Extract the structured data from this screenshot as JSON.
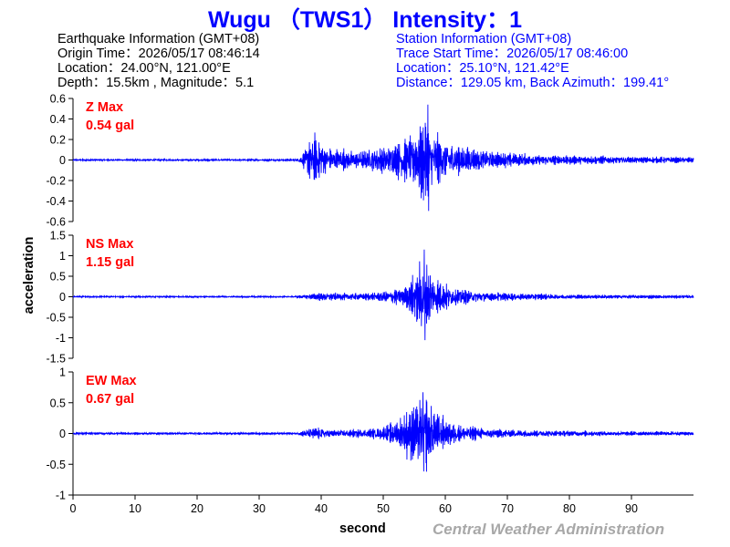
{
  "header": {
    "title": "Wugu （TWS1） Intensity：1"
  },
  "earthquake_info": {
    "heading": "Earthquake Information  (GMT+08)",
    "origin_time": "Origin Time：2026/05/17 08:46:14",
    "location": "Location：24.00°N, 121.00°E",
    "depth_magnitude": "Depth：15.5km , Magnitude：5.1"
  },
  "station_info": {
    "heading": "Station Information  (GMT+08)",
    "trace_start": "Trace Start Time：2026/05/17 08:46:00",
    "location": "Location：25.10°N, 121.42°E",
    "distance": "Distance：129.05 km, Back Azimuth：199.41°"
  },
  "footer": {
    "credit": "Central Weather Administration"
  },
  "colors": {
    "trace": "#0000ff",
    "title": "#0000ff",
    "max_label": "#ff0000",
    "axis": "#000000",
    "credit": "#a8a8a8"
  },
  "chart_data": {
    "type": "line",
    "xlabel": "second",
    "ylabel": "acceleration",
    "xlim": [
      0,
      100
    ],
    "xticks": [
      0,
      10,
      20,
      30,
      40,
      50,
      60,
      70,
      80,
      90
    ],
    "grid": false,
    "panels": [
      {
        "name": "Z",
        "max_label": "Z Max",
        "max_value": "0.54 gal",
        "ylim": [
          -0.6,
          0.6
        ],
        "yticks": [
          0.6,
          0.4,
          0.2,
          0,
          -0.2,
          -0.4,
          -0.6
        ],
        "envelope": {
          "t": [
            0,
            36,
            37,
            38,
            39,
            40,
            41,
            43,
            45,
            48,
            51,
            53,
            55,
            56,
            57,
            58,
            60,
            62,
            65,
            68,
            72,
            80,
            90,
            100
          ],
          "amp": [
            0.01,
            0.01,
            0.06,
            0.2,
            0.28,
            0.2,
            0.14,
            0.12,
            0.1,
            0.12,
            0.14,
            0.22,
            0.26,
            0.45,
            0.4,
            0.3,
            0.22,
            0.15,
            0.12,
            0.09,
            0.07,
            0.05,
            0.035,
            0.03
          ]
        },
        "peak": {
          "t": 57.2,
          "value": 0.54
        }
      },
      {
        "name": "NS",
        "max_label": "NS Max",
        "max_value": "1.15 gal",
        "ylim": [
          -1.5,
          1.5
        ],
        "yticks": [
          1.5,
          1,
          0.5,
          0,
          -0.5,
          -1,
          -1.5
        ],
        "envelope": {
          "t": [
            0,
            36,
            38,
            40,
            44,
            48,
            52,
            54,
            55,
            56,
            57,
            58,
            60,
            62,
            65,
            70,
            80,
            90,
            100
          ],
          "amp": [
            0.02,
            0.02,
            0.08,
            0.12,
            0.09,
            0.1,
            0.2,
            0.3,
            0.6,
            1.0,
            0.8,
            0.5,
            0.35,
            0.22,
            0.15,
            0.1,
            0.06,
            0.05,
            0.04
          ]
        },
        "peak": {
          "t": 56.6,
          "value": 1.15
        }
      },
      {
        "name": "EW",
        "max_label": "EW Max",
        "max_value": "0.67 gal",
        "ylim": [
          -1,
          1
        ],
        "yticks": [
          1,
          0.5,
          0,
          -0.5,
          -1
        ],
        "envelope": {
          "t": [
            0,
            36,
            38,
            39,
            40,
            42,
            45,
            48,
            51,
            53,
            54,
            55,
            56,
            57,
            58,
            59,
            60,
            62,
            65,
            70,
            80,
            90,
            100
          ],
          "amp": [
            0.02,
            0.02,
            0.08,
            0.12,
            0.1,
            0.07,
            0.07,
            0.08,
            0.15,
            0.3,
            0.42,
            0.5,
            0.6,
            0.58,
            0.45,
            0.35,
            0.25,
            0.16,
            0.11,
            0.07,
            0.05,
            0.04,
            0.035
          ]
        },
        "peak": {
          "t": 56.4,
          "value": 0.67
        }
      }
    ]
  }
}
